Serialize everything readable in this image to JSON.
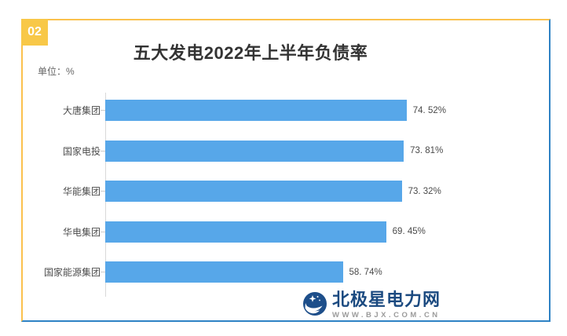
{
  "panel": {
    "badge": "02"
  },
  "chart_data": {
    "type": "bar",
    "orientation": "horizontal",
    "title": "五大发电2022年上半年负债率",
    "unit_label": "单位：%",
    "unit": "%",
    "categories": [
      "大唐集团",
      "国家电投",
      "华能集团",
      "华电集团",
      "国家能源集团"
    ],
    "values": [
      74.52,
      73.81,
      73.32,
      69.45,
      58.74
    ],
    "display_values": [
      "74. 52%",
      "73. 81%",
      "73. 32%",
      "69. 45%",
      "58. 74%"
    ],
    "xlim": [
      0,
      80
    ],
    "grid": false,
    "legend": "none",
    "value_labels": "outside-end",
    "bar_color": "#57a7e9"
  },
  "watermark": {
    "name": "北极星电力网",
    "url": "WWW.BJX.COM.CN"
  },
  "colors": {
    "bar": "#57a7e9",
    "border_top_left": "#fbc14d",
    "border_bottom_right": "#2e82c4",
    "badge_bg": "#f8c848",
    "logo_navy": "#1d4e8a",
    "title_text": "#333333",
    "axis_line": "#d9d9d9"
  }
}
